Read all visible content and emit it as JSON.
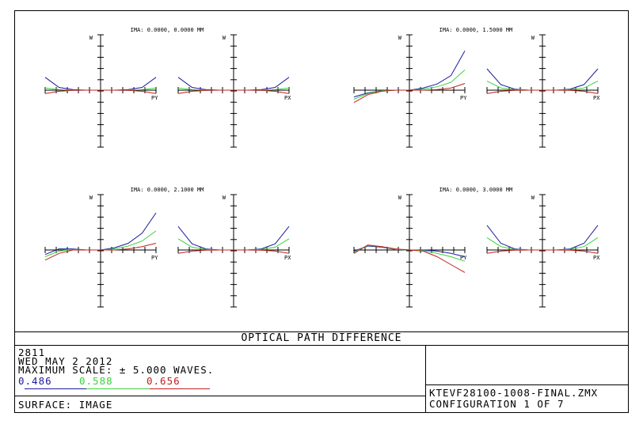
{
  "colors": {
    "blue": "#1a1aa0",
    "green": "#3ad13a",
    "red": "#c02020",
    "axis": "#000000"
  },
  "chart_data": {
    "type": "line",
    "title": "OPTICAL PATH DIFFERENCE",
    "axis_labels": {
      "tangential_title": "W",
      "sagittal_title": "W",
      "tangential_x": "PY",
      "sagittal_x": "PX"
    },
    "scale_waves": 5.0,
    "fields": [
      {
        "label": "IMA: 0.0000, 0.0000 MM",
        "tangential": {
          "x": [
            -1,
            -0.75,
            -0.5,
            -0.25,
            0,
            0.25,
            0.5,
            0.75,
            1
          ],
          "series": [
            {
              "name": "0.486",
              "values": [
                1.15,
                0.25,
                0.05,
                0,
                0,
                0,
                0.05,
                0.25,
                1.15
              ]
            },
            {
              "name": "0.588",
              "values": [
                0.2,
                0.05,
                0,
                0,
                0,
                0,
                0,
                0.05,
                0.2
              ]
            },
            {
              "name": "0.656",
              "values": [
                -0.3,
                -0.1,
                -0.02,
                0,
                0,
                0,
                -0.02,
                -0.1,
                -0.3
              ]
            }
          ]
        },
        "sagittal": {
          "x": [
            -1,
            -0.75,
            -0.5,
            -0.25,
            0,
            0.25,
            0.5,
            0.75,
            1
          ],
          "series": [
            {
              "name": "0.486",
              "values": [
                1.15,
                0.25,
                0.05,
                0,
                0,
                0,
                0.05,
                0.25,
                1.15
              ]
            },
            {
              "name": "0.588",
              "values": [
                0.2,
                0.05,
                0,
                0,
                0,
                0,
                0,
                0.05,
                0.2
              ]
            },
            {
              "name": "0.656",
              "values": [
                -0.3,
                -0.1,
                -0.02,
                0,
                0,
                0,
                -0.02,
                -0.1,
                -0.3
              ]
            }
          ]
        }
      },
      {
        "label": "IMA: 0.0000, 1.5000 MM",
        "tangential": {
          "x": [
            -1,
            -0.75,
            -0.5,
            -0.25,
            0,
            0.25,
            0.5,
            0.75,
            1
          ],
          "series": [
            {
              "name": "0.486",
              "values": [
                -0.6,
                -0.25,
                -0.05,
                0,
                0,
                0.2,
                0.55,
                1.3,
                3.5
              ]
            },
            {
              "name": "0.588",
              "values": [
                -0.8,
                -0.3,
                -0.05,
                0,
                0,
                0.1,
                0.3,
                0.7,
                1.8
              ]
            },
            {
              "name": "0.656",
              "values": [
                -1.1,
                -0.4,
                -0.1,
                0,
                0,
                0,
                0.05,
                0.2,
                0.6
              ]
            }
          ]
        },
        "sagittal": {
          "x": [
            -1,
            -0.75,
            -0.5,
            -0.25,
            0,
            0.25,
            0.5,
            0.75,
            1
          ],
          "series": [
            {
              "name": "0.486",
              "values": [
                1.9,
                0.5,
                0.1,
                0,
                0,
                0,
                0.1,
                0.5,
                1.9
              ]
            },
            {
              "name": "0.588",
              "values": [
                0.8,
                0.2,
                0.05,
                0,
                0,
                0,
                0.05,
                0.2,
                0.8
              ]
            },
            {
              "name": "0.656",
              "values": [
                -0.3,
                -0.1,
                -0.02,
                0,
                0,
                0,
                -0.02,
                -0.1,
                -0.3
              ]
            }
          ]
        }
      },
      {
        "label": "IMA: 0.0000, 2.1000 MM",
        "tangential": {
          "x": [
            -1,
            -0.75,
            -0.5,
            -0.25,
            0,
            0.25,
            0.5,
            0.75,
            1
          ],
          "series": [
            {
              "name": "0.486",
              "values": [
                -0.4,
                0.1,
                0.1,
                0,
                0,
                0.2,
                0.6,
                1.5,
                3.3
              ]
            },
            {
              "name": "0.588",
              "values": [
                -0.6,
                -0.1,
                0.05,
                0,
                0,
                0.1,
                0.35,
                0.8,
                1.7
              ]
            },
            {
              "name": "0.656",
              "values": [
                -0.9,
                -0.3,
                0,
                0,
                0,
                0,
                0.1,
                0.3,
                0.6
              ]
            }
          ]
        },
        "sagittal": {
          "x": [
            -1,
            -0.75,
            -0.5,
            -0.25,
            0,
            0.25,
            0.5,
            0.75,
            1
          ],
          "series": [
            {
              "name": "0.486",
              "values": [
                2.1,
                0.55,
                0.1,
                0,
                0,
                0,
                0.1,
                0.55,
                2.1
              ]
            },
            {
              "name": "0.588",
              "values": [
                1.0,
                0.25,
                0.05,
                0,
                0,
                0,
                0.05,
                0.25,
                1.0
              ]
            },
            {
              "name": "0.656",
              "values": [
                -0.3,
                -0.1,
                -0.02,
                0,
                0,
                0,
                -0.02,
                -0.1,
                -0.3
              ]
            }
          ]
        }
      },
      {
        "label": "IMA: 0.0000, 3.0000 MM",
        "tangential": {
          "x": [
            -1,
            -0.75,
            -0.5,
            -0.25,
            0,
            0.25,
            0.5,
            0.75,
            1
          ],
          "series": [
            {
              "name": "0.486",
              "values": [
                -0.1,
                0.35,
                0.25,
                0.05,
                0,
                0,
                -0.1,
                -0.3,
                -0.6
              ]
            },
            {
              "name": "0.588",
              "values": [
                -0.2,
                0.4,
                0.3,
                0.05,
                0,
                -0.05,
                -0.3,
                -0.6,
                -1.0
              ]
            },
            {
              "name": "0.656",
              "values": [
                -0.3,
                0.45,
                0.3,
                0.1,
                0,
                -0.1,
                -0.6,
                -1.3,
                -2.0
              ]
            }
          ]
        },
        "sagittal": {
          "x": [
            -1,
            -0.75,
            -0.5,
            -0.25,
            0,
            0.25,
            0.5,
            0.75,
            1
          ],
          "series": [
            {
              "name": "0.486",
              "values": [
                2.2,
                0.6,
                0.1,
                0,
                0,
                0,
                0.1,
                0.6,
                2.2
              ]
            },
            {
              "name": "0.588",
              "values": [
                1.1,
                0.3,
                0.05,
                0,
                0,
                0,
                0.05,
                0.3,
                1.1
              ]
            },
            {
              "name": "0.656",
              "values": [
                -0.3,
                -0.1,
                -0.02,
                0,
                0,
                0,
                -0.02,
                -0.1,
                -0.3
              ]
            }
          ]
        }
      }
    ]
  },
  "info": {
    "title": "OPTICAL PATH DIFFERENCE",
    "id": "2811",
    "date": "WED MAY 2 2012",
    "max_scale": "MAXIMUM SCALE: ± 5.000 WAVES.",
    "wavelengths": [
      "0.486",
      "0.588",
      "0.656"
    ],
    "surface": "SURFACE: IMAGE",
    "filename": "KTEVF28100-1008-FINAL.ZMX",
    "configuration": "CONFIGURATION 1 OF 7"
  }
}
